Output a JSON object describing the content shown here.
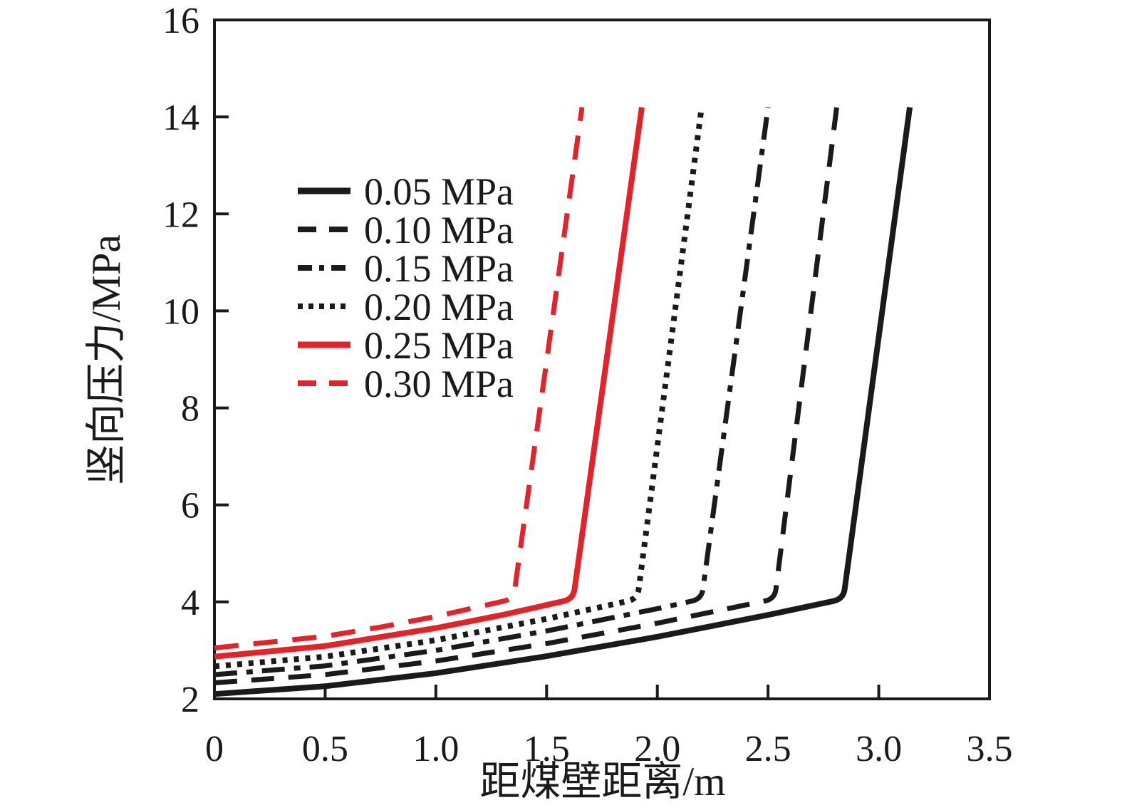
{
  "figure": {
    "background": "#ffffff",
    "axis_color": "#1a1a1a",
    "text_color": "#1a1a1a",
    "accent_red": "#e3222a"
  },
  "chart_data": {
    "type": "line",
    "title": "",
    "xlabel": "距煤壁距离/m",
    "ylabel": "竖向压力/MPa",
    "xlim": [
      0,
      3.5
    ],
    "ylim": [
      2,
      16
    ],
    "xticks": [
      0,
      0.5,
      1.0,
      1.5,
      2.0,
      2.5,
      3.0,
      3.5
    ],
    "xtick_labels": [
      "0",
      "0.5",
      "1.0",
      "1.5",
      "2.0",
      "2.5",
      "3.0",
      "3.5"
    ],
    "yticks": [
      2,
      4,
      6,
      8,
      10,
      12,
      14,
      16
    ],
    "ytick_labels": [
      "2",
      "4",
      "6",
      "8",
      "10",
      "12",
      "14",
      "16"
    ],
    "grid": false,
    "legend_position": "upper-left-inside",
    "series": [
      {
        "name": "0.05 MPa",
        "color": "#1a1a1a",
        "style": "solid",
        "dash": "",
        "sample_dash": "",
        "width": 8,
        "points": [
          [
            0,
            2.1
          ],
          [
            0.5,
            2.26
          ],
          [
            1.0,
            2.53
          ],
          [
            1.5,
            2.88
          ],
          [
            2.0,
            3.28
          ],
          [
            2.5,
            3.73
          ],
          [
            2.84,
            4.06
          ],
          [
            3.14,
            14.2
          ]
        ]
      },
      {
        "name": "0.10 MPa",
        "color": "#1a1a1a",
        "style": "dashed",
        "dash": "32 20",
        "sample_dash": "26 18",
        "width": 7,
        "points": [
          [
            0,
            2.33
          ],
          [
            0.5,
            2.5
          ],
          [
            1.0,
            2.78
          ],
          [
            1.5,
            3.14
          ],
          [
            2.0,
            3.56
          ],
          [
            2.53,
            4.06
          ],
          [
            2.81,
            14.2
          ]
        ]
      },
      {
        "name": "0.15 MPa",
        "color": "#1a1a1a",
        "style": "dashdot",
        "dash": "32 13 9 13",
        "sample_dash": "20 10 7 10",
        "width": 7,
        "points": [
          [
            0,
            2.5
          ],
          [
            0.5,
            2.68
          ],
          [
            1.0,
            3.0
          ],
          [
            1.5,
            3.4
          ],
          [
            2.0,
            3.86
          ],
          [
            2.2,
            4.06
          ],
          [
            2.5,
            14.2
          ]
        ]
      },
      {
        "name": "0.20 MPa",
        "color": "#1a1a1a",
        "style": "dotted",
        "dash": "7 9",
        "sample_dash": "7 8",
        "width": 8,
        "points": [
          [
            0,
            2.67
          ],
          [
            0.5,
            2.87
          ],
          [
            1.0,
            3.21
          ],
          [
            1.5,
            3.65
          ],
          [
            1.91,
            4.06
          ],
          [
            2.2,
            14.2
          ]
        ]
      },
      {
        "name": "0.25 MPa",
        "color": "#e3222a",
        "style": "solid",
        "dash": "",
        "sample_dash": "",
        "width": 8,
        "points": [
          [
            0,
            2.87
          ],
          [
            0.5,
            3.09
          ],
          [
            1.0,
            3.46
          ],
          [
            1.3,
            3.73
          ],
          [
            1.62,
            4.06
          ],
          [
            1.93,
            14.2
          ]
        ]
      },
      {
        "name": "0.30 MPa",
        "color": "#e3222a",
        "style": "dashed",
        "dash": "34 21",
        "sample_dash": "26 18",
        "width": 7,
        "points": [
          [
            0,
            3.05
          ],
          [
            0.5,
            3.29
          ],
          [
            0.75,
            3.48
          ],
          [
            1.0,
            3.7
          ],
          [
            1.35,
            4.06
          ],
          [
            1.66,
            14.2
          ]
        ]
      }
    ]
  }
}
